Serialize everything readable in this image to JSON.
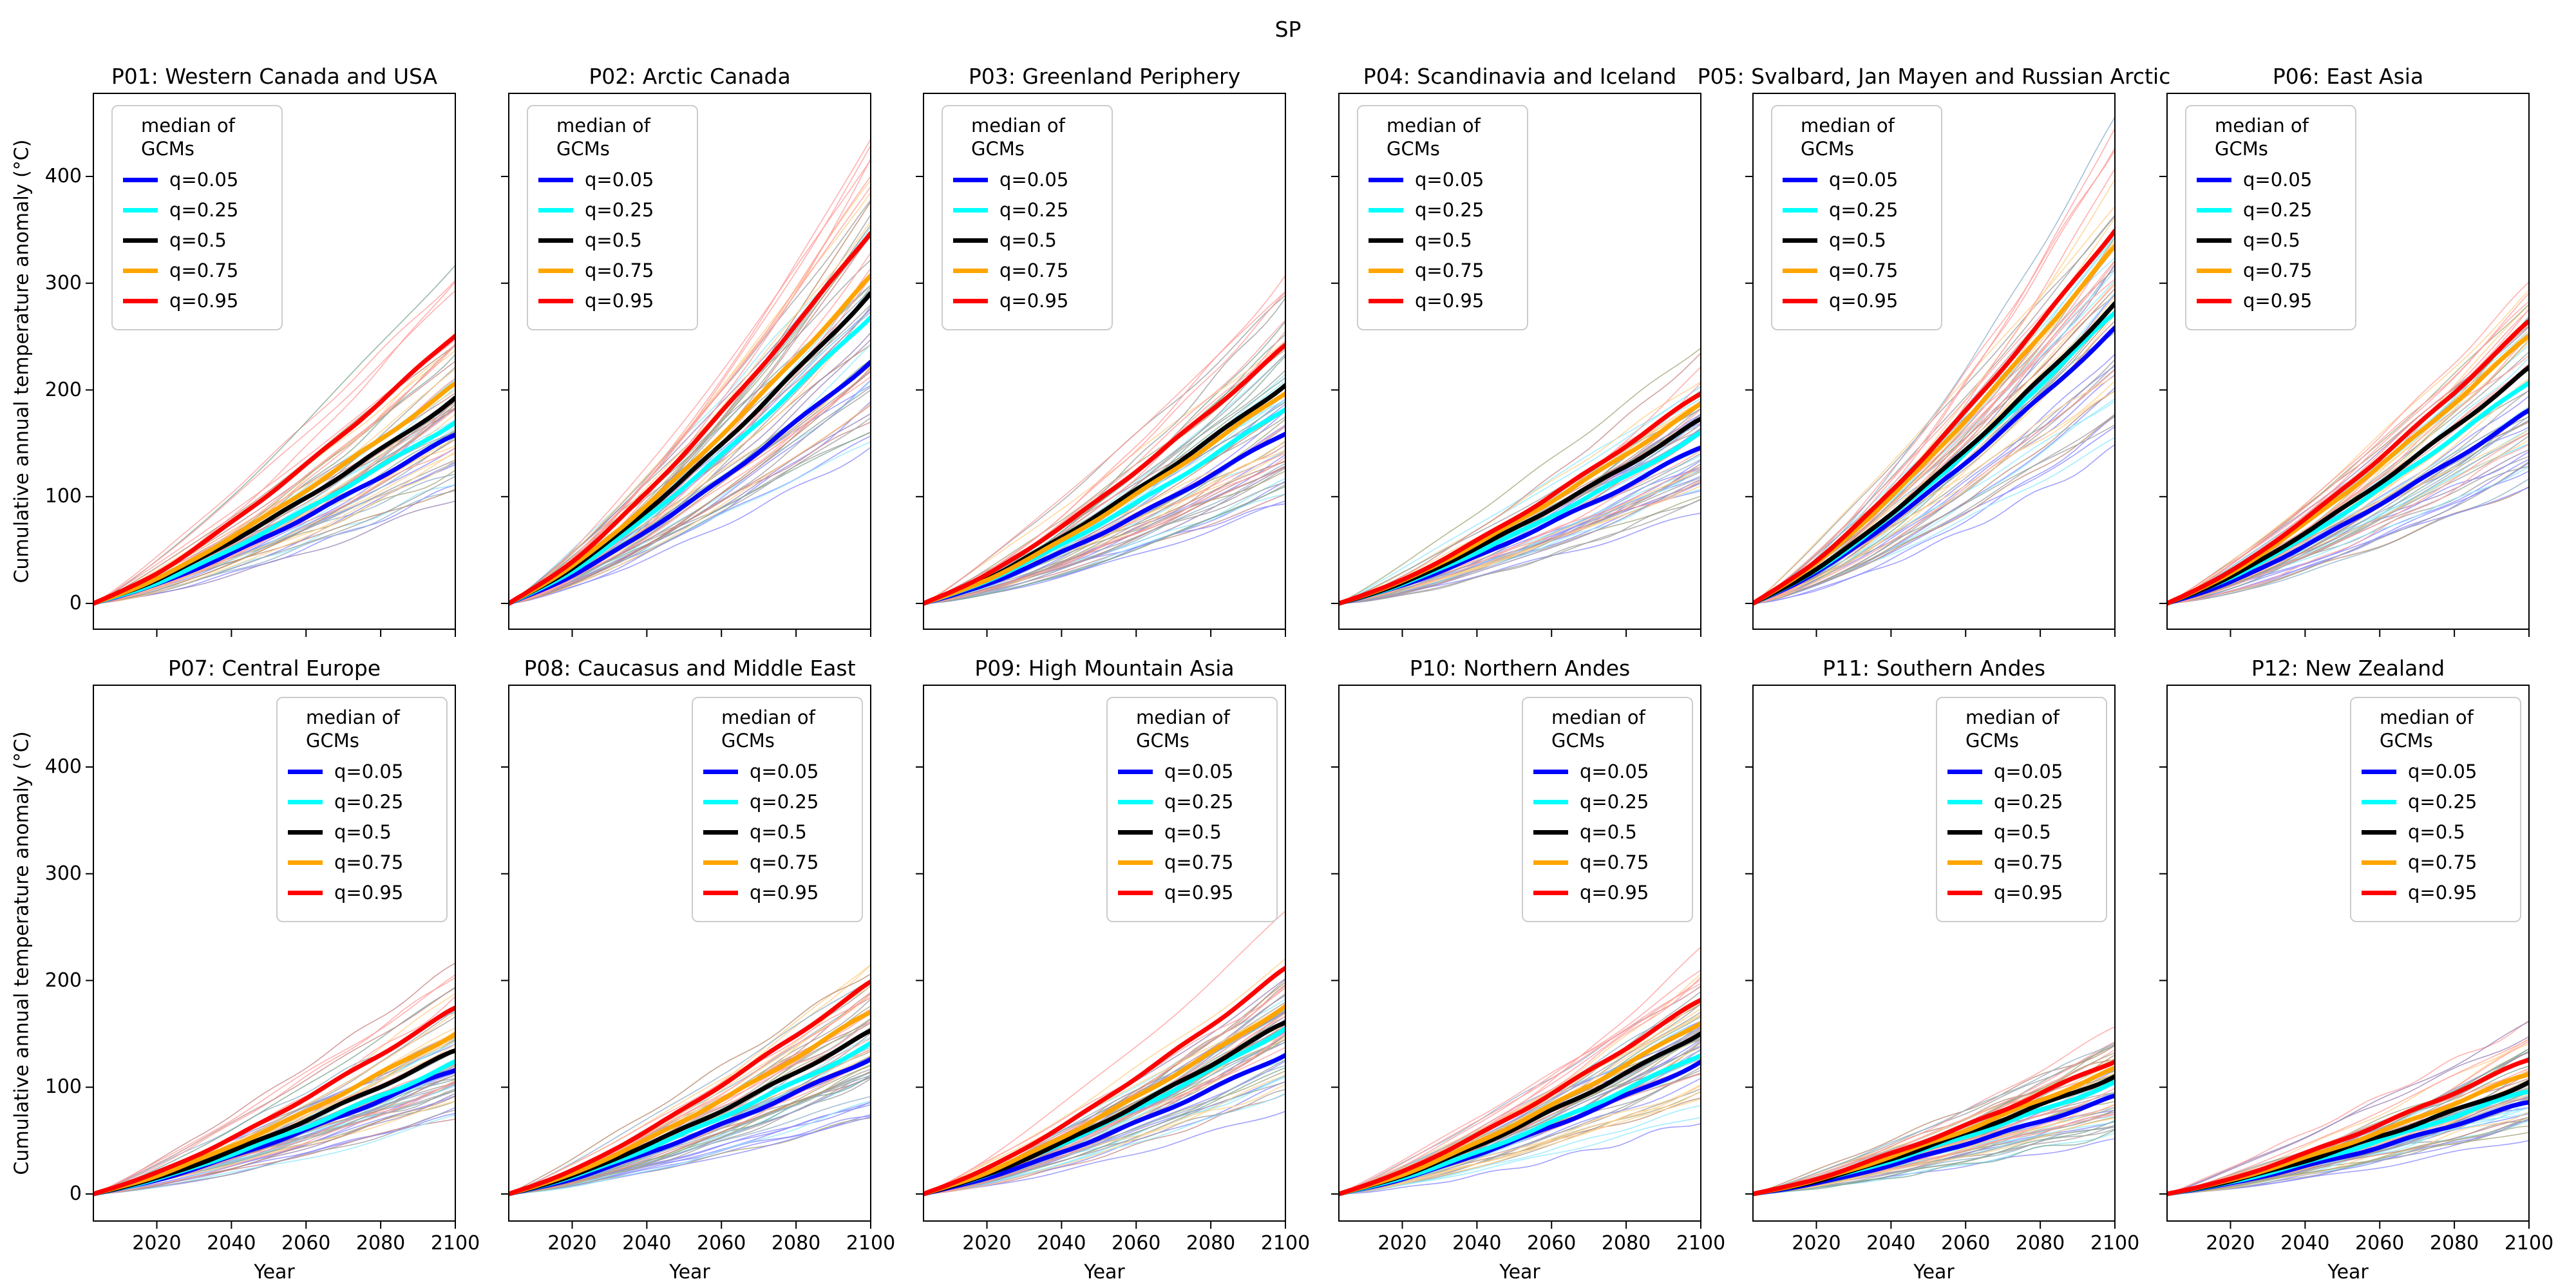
{
  "figure": {
    "suptitle": "SP",
    "background": "#ffffff"
  },
  "axes": {
    "ylabel": "Cumulative annual temperature anomaly (°C)",
    "xlabel": "Year",
    "yticks": [
      0,
      100,
      200,
      300,
      400
    ],
    "xticks": [
      2020,
      2040,
      2060,
      2080,
      2100
    ],
    "x_range": [
      2003,
      2100
    ],
    "y_top_value": 478,
    "y_bottom_value": -25,
    "grid": false
  },
  "legend": {
    "title": "median of GCMs",
    "position_row1": "upper-left",
    "position_row2": "upper-right",
    "entries": [
      {
        "label": "q=0.05",
        "color": "#0000ff"
      },
      {
        "label": "q=0.25",
        "color": "#00ffff"
      },
      {
        "label": "q=0.5",
        "color": "#000000"
      },
      {
        "label": "q=0.75",
        "color": "#ffa500"
      },
      {
        "label": "q=0.95",
        "color": "#ff0000"
      }
    ]
  },
  "style": {
    "quantile_colors": [
      "#0000ff",
      "#00ffff",
      "#000000",
      "#ffa500",
      "#ff0000"
    ],
    "thin_variant_colors": [
      "#8a8aff",
      "#8fe9ff",
      "#a0a0a0",
      "#ffd08a",
      "#ff9d9d"
    ],
    "neutral_thin_colors": [
      "#9e9e9e",
      "#b98b6e",
      "#7fa795",
      "#9b84b8",
      "#c98888",
      "#8fb0c9",
      "#a8a87a"
    ],
    "axis_color": "#000000"
  },
  "gcm_ensemble": {
    "thin_lines_per_quantile": 13,
    "thin_line_opacity": 0.8,
    "end_scale_range": [
      0.55,
      1.3
    ]
  },
  "chart_data": [
    {
      "id": "P01",
      "type": "line",
      "title": "P01: Western Canada and USA",
      "x": [
        2003,
        2020,
        2040,
        2060,
        2080,
        2100
      ],
      "series": [
        {
          "name": "q=0.05",
          "color": "#0000ff",
          "values": [
            0,
            18,
            47,
            81,
            119,
            158
          ]
        },
        {
          "name": "q=0.25",
          "color": "#00ffff",
          "values": [
            0,
            19,
            51,
            88,
            128,
            170
          ]
        },
        {
          "name": "q=0.5",
          "color": "#000000",
          "values": [
            0,
            22,
            58,
            99,
            144,
            192
          ]
        },
        {
          "name": "q=0.75",
          "color": "#ffa500",
          "values": [
            0,
            23,
            62,
            106,
            154,
            205
          ]
        },
        {
          "name": "q=0.95",
          "color": "#ff0000",
          "values": [
            0,
            28,
            76,
            130,
            189,
            252
          ]
        }
      ]
    },
    {
      "id": "P02",
      "type": "line",
      "title": "P02: Arctic Canada",
      "x": [
        2003,
        2020,
        2040,
        2060,
        2080,
        2100
      ],
      "series": [
        {
          "name": "q=0.05",
          "color": "#0000ff",
          "values": [
            0,
            26,
            68,
            116,
            170,
            226
          ]
        },
        {
          "name": "q=0.25",
          "color": "#00ffff",
          "values": [
            0,
            30,
            81,
            139,
            202,
            269
          ]
        },
        {
          "name": "q=0.5",
          "color": "#000000",
          "values": [
            0,
            33,
            87,
            149,
            218,
            290
          ]
        },
        {
          "name": "q=0.75",
          "color": "#ffa500",
          "values": [
            0,
            35,
            92,
            158,
            230,
            306
          ]
        },
        {
          "name": "q=0.95",
          "color": "#ff0000",
          "values": [
            0,
            39,
            104,
            179,
            261,
            348
          ]
        }
      ]
    },
    {
      "id": "P03",
      "type": "line",
      "title": "P03: Greenland Periphery",
      "x": [
        2003,
        2020,
        2040,
        2060,
        2080,
        2100
      ],
      "series": [
        {
          "name": "q=0.05",
          "color": "#0000ff",
          "values": [
            0,
            18,
            48,
            82,
            120,
            160
          ]
        },
        {
          "name": "q=0.25",
          "color": "#00ffff",
          "values": [
            0,
            21,
            55,
            94,
            137,
            183
          ]
        },
        {
          "name": "q=0.5",
          "color": "#000000",
          "values": [
            0,
            23,
            62,
            106,
            154,
            205
          ]
        },
        {
          "name": "q=0.75",
          "color": "#ffa500",
          "values": [
            0,
            22,
            59,
            102,
            149,
            198
          ]
        },
        {
          "name": "q=0.95",
          "color": "#ff0000",
          "values": [
            0,
            27,
            72,
            124,
            181,
            241
          ]
        }
      ]
    },
    {
      "id": "P04",
      "type": "line",
      "title": "P04: Scandinavia and Iceland",
      "x": [
        2003,
        2020,
        2040,
        2060,
        2080,
        2100
      ],
      "series": [
        {
          "name": "q=0.05",
          "color": "#0000ff",
          "values": [
            0,
            17,
            44,
            76,
            110,
            147
          ]
        },
        {
          "name": "q=0.25",
          "color": "#00ffff",
          "values": [
            0,
            18,
            48,
            82,
            119,
            159
          ]
        },
        {
          "name": "q=0.5",
          "color": "#000000",
          "values": [
            0,
            19,
            52,
            89,
            129,
            172
          ]
        },
        {
          "name": "q=0.75",
          "color": "#ffa500",
          "values": [
            0,
            21,
            56,
            96,
            140,
            186
          ]
        },
        {
          "name": "q=0.95",
          "color": "#ff0000",
          "values": [
            0,
            22,
            59,
            101,
            148,
            197
          ]
        }
      ]
    },
    {
      "id": "P05",
      "type": "line",
      "title": "P05: Svalbard, Jan Mayen and Russian Arctic",
      "x": [
        2003,
        2020,
        2040,
        2060,
        2080,
        2100
      ],
      "series": [
        {
          "name": "q=0.05",
          "color": "#0000ff",
          "values": [
            0,
            29,
            77,
            132,
            193,
            257
          ]
        },
        {
          "name": "q=0.25",
          "color": "#00ffff",
          "values": [
            0,
            31,
            82,
            141,
            205,
            273
          ]
        },
        {
          "name": "q=0.5",
          "color": "#000000",
          "values": [
            0,
            32,
            84,
            144,
            210,
            280
          ]
        },
        {
          "name": "q=0.75",
          "color": "#ffa500",
          "values": [
            0,
            38,
            100,
            172,
            251,
            334
          ]
        },
        {
          "name": "q=0.95",
          "color": "#ff0000",
          "values": [
            0,
            40,
            105,
            180,
            263,
            350
          ]
        }
      ]
    },
    {
      "id": "P06",
      "type": "line",
      "title": "P06: East Asia",
      "x": [
        2003,
        2020,
        2040,
        2060,
        2080,
        2100
      ],
      "series": [
        {
          "name": "q=0.05",
          "color": "#0000ff",
          "values": [
            0,
            20,
            54,
            93,
            135,
            180
          ]
        },
        {
          "name": "q=0.25",
          "color": "#00ffff",
          "values": [
            0,
            24,
            62,
            107,
            156,
            208
          ]
        },
        {
          "name": "q=0.5",
          "color": "#000000",
          "values": [
            0,
            25,
            66,
            113,
            165,
            220
          ]
        },
        {
          "name": "q=0.75",
          "color": "#ffa500",
          "values": [
            0,
            28,
            75,
            129,
            188,
            251
          ]
        },
        {
          "name": "q=0.95",
          "color": "#ff0000",
          "values": [
            0,
            30,
            79,
            136,
            198,
            264
          ]
        }
      ]
    },
    {
      "id": "P07",
      "type": "line",
      "title": "P07: Central Europe",
      "x": [
        2003,
        2020,
        2040,
        2060,
        2080,
        2100
      ],
      "series": [
        {
          "name": "q=0.05",
          "color": "#0000ff",
          "values": [
            0,
            13,
            35,
            60,
            88,
            117
          ]
        },
        {
          "name": "q=0.25",
          "color": "#00ffff",
          "values": [
            0,
            14,
            37,
            63,
            92,
            123
          ]
        },
        {
          "name": "q=0.5",
          "color": "#000000",
          "values": [
            0,
            15,
            40,
            69,
            101,
            134
          ]
        },
        {
          "name": "q=0.75",
          "color": "#ffa500",
          "values": [
            0,
            17,
            45,
            77,
            113,
            150
          ]
        },
        {
          "name": "q=0.95",
          "color": "#ff0000",
          "values": [
            0,
            20,
            52,
            90,
            131,
            174
          ]
        }
      ]
    },
    {
      "id": "P08",
      "type": "line",
      "title": "P08: Caucasus and Middle East",
      "x": [
        2003,
        2020,
        2040,
        2060,
        2080,
        2100
      ],
      "series": [
        {
          "name": "q=0.05",
          "color": "#0000ff",
          "values": [
            0,
            14,
            38,
            65,
            95,
            127
          ]
        },
        {
          "name": "q=0.25",
          "color": "#00ffff",
          "values": [
            0,
            16,
            42,
            72,
            105,
            140
          ]
        },
        {
          "name": "q=0.5",
          "color": "#000000",
          "values": [
            0,
            17,
            46,
            78,
            114,
            152
          ]
        },
        {
          "name": "q=0.75",
          "color": "#ffa500",
          "values": [
            0,
            19,
            51,
            88,
            128,
            171
          ]
        },
        {
          "name": "q=0.95",
          "color": "#ff0000",
          "values": [
            0,
            22,
            59,
            102,
            149,
            198
          ]
        }
      ]
    },
    {
      "id": "P09",
      "type": "line",
      "title": "P09: High Mountain Asia",
      "x": [
        2003,
        2020,
        2040,
        2060,
        2080,
        2100
      ],
      "series": [
        {
          "name": "q=0.05",
          "color": "#0000ff",
          "values": [
            0,
            15,
            39,
            67,
            98,
            131
          ]
        },
        {
          "name": "q=0.25",
          "color": "#00ffff",
          "values": [
            0,
            18,
            47,
            80,
            116,
            155
          ]
        },
        {
          "name": "q=0.5",
          "color": "#000000",
          "values": [
            0,
            18,
            48,
            83,
            121,
            161
          ]
        },
        {
          "name": "q=0.75",
          "color": "#ffa500",
          "values": [
            0,
            20,
            53,
            91,
            132,
            176
          ]
        },
        {
          "name": "q=0.95",
          "color": "#ff0000",
          "values": [
            0,
            24,
            63,
            109,
            158,
            211
          ]
        }
      ]
    },
    {
      "id": "P10",
      "type": "line",
      "title": "P10: Northern Andes",
      "x": [
        2003,
        2020,
        2040,
        2060,
        2080,
        2100
      ],
      "series": [
        {
          "name": "q=0.05",
          "color": "#0000ff",
          "values": [
            0,
            14,
            37,
            63,
            92,
            123
          ]
        },
        {
          "name": "q=0.25",
          "color": "#00ffff",
          "values": [
            0,
            15,
            39,
            67,
            98,
            131
          ]
        },
        {
          "name": "q=0.5",
          "color": "#000000",
          "values": [
            0,
            17,
            45,
            78,
            113,
            151
          ]
        },
        {
          "name": "q=0.75",
          "color": "#ffa500",
          "values": [
            0,
            18,
            48,
            83,
            121,
            161
          ]
        },
        {
          "name": "q=0.95",
          "color": "#ff0000",
          "values": [
            0,
            21,
            55,
            94,
            137,
            182
          ]
        }
      ]
    },
    {
      "id": "P11",
      "type": "line",
      "title": "P11: Southern Andes",
      "x": [
        2003,
        2020,
        2040,
        2060,
        2080,
        2100
      ],
      "series": [
        {
          "name": "q=0.05",
          "color": "#0000ff",
          "values": [
            0,
            10,
            27,
            47,
            68,
            91
          ]
        },
        {
          "name": "q=0.25",
          "color": "#00ffff",
          "values": [
            0,
            12,
            31,
            54,
            78,
            104
          ]
        },
        {
          "name": "q=0.5",
          "color": "#000000",
          "values": [
            0,
            12,
            33,
            57,
            83,
            110
          ]
        },
        {
          "name": "q=0.75",
          "color": "#ffa500",
          "values": [
            0,
            13,
            35,
            60,
            88,
            117
          ]
        },
        {
          "name": "q=0.95",
          "color": "#ff0000",
          "values": [
            0,
            14,
            38,
            64,
            94,
            125
          ]
        }
      ]
    },
    {
      "id": "P12",
      "type": "line",
      "title": "P12: New Zealand",
      "x": [
        2003,
        2020,
        2040,
        2060,
        2080,
        2100
      ],
      "series": [
        {
          "name": "q=0.05",
          "color": "#0000ff",
          "values": [
            0,
            10,
            26,
            44,
            65,
            86
          ]
        },
        {
          "name": "q=0.25",
          "color": "#00ffff",
          "values": [
            0,
            11,
            29,
            50,
            73,
            97
          ]
        },
        {
          "name": "q=0.5",
          "color": "#000000",
          "values": [
            0,
            12,
            31,
            54,
            78,
            104
          ]
        },
        {
          "name": "q=0.75",
          "color": "#ffa500",
          "values": [
            0,
            13,
            34,
            58,
            85,
            113
          ]
        },
        {
          "name": "q=0.95",
          "color": "#ff0000",
          "values": [
            0,
            14,
            38,
            65,
            95,
            126
          ]
        }
      ]
    }
  ]
}
